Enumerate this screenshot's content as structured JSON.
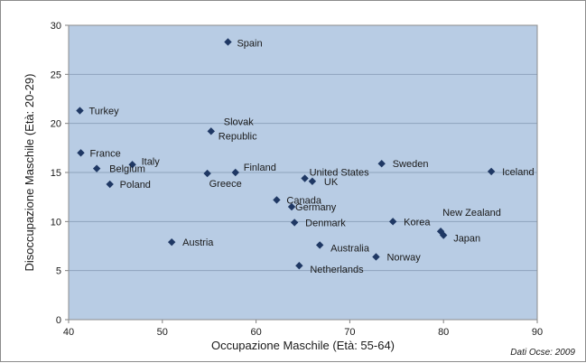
{
  "chart_data": {
    "type": "scatter",
    "title": "",
    "xlabel": "Occupazione Maschile (Età: 55-64)",
    "ylabel": "Disoccupazione Maschile (Età: 20-29)",
    "xlim": [
      40,
      90
    ],
    "ylim": [
      0,
      30
    ],
    "x_ticks": [
      "40",
      "50",
      "60",
      "70",
      "80",
      "90"
    ],
    "y_ticks": [
      "0",
      "5",
      "10",
      "15",
      "20",
      "25",
      "30"
    ],
    "grid": "horizontal",
    "marker": "diamond",
    "colors": {
      "plot_bg": "#b8cce4",
      "marker": "#1f3864",
      "grid": "#8ea3bd"
    },
    "source_note": "Dati Ocse: 2009",
    "points": [
      {
        "label": "Spain",
        "x": 57.0,
        "y": 28.3
      },
      {
        "label": "Turkey",
        "x": 41.2,
        "y": 21.3
      },
      {
        "label": "Slovak Republic",
        "x": 55.2,
        "y": 19.2
      },
      {
        "label": "France",
        "x": 41.3,
        "y": 17.0
      },
      {
        "label": "Italy",
        "x": 46.8,
        "y": 15.8
      },
      {
        "label": "Belgium",
        "x": 43.0,
        "y": 15.4
      },
      {
        "label": "Poland",
        "x": 44.4,
        "y": 13.8
      },
      {
        "label": "Finland",
        "x": 57.8,
        "y": 15.0
      },
      {
        "label": "Greece",
        "x": 54.8,
        "y": 14.9
      },
      {
        "label": "United States",
        "x": 65.2,
        "y": 14.4
      },
      {
        "label": "UK",
        "x": 66.0,
        "y": 14.1
      },
      {
        "label": "Sweden",
        "x": 73.4,
        "y": 15.9
      },
      {
        "label": "Iceland",
        "x": 85.1,
        "y": 15.1
      },
      {
        "label": "Canada",
        "x": 62.2,
        "y": 12.2
      },
      {
        "label": "Germany",
        "x": 63.8,
        "y": 11.5
      },
      {
        "label": "Denmark",
        "x": 64.1,
        "y": 9.9
      },
      {
        "label": "Korea",
        "x": 74.6,
        "y": 10.0
      },
      {
        "label": "New Zealand",
        "x": 79.7,
        "y": 9.0
      },
      {
        "label": "Japan",
        "x": 80.0,
        "y": 8.6
      },
      {
        "label": "Austria",
        "x": 51.0,
        "y": 7.9
      },
      {
        "label": "Australia",
        "x": 66.8,
        "y": 7.6
      },
      {
        "label": "Norway",
        "x": 72.8,
        "y": 6.4
      },
      {
        "label": "Netherlands",
        "x": 64.6,
        "y": 5.5
      }
    ]
  }
}
